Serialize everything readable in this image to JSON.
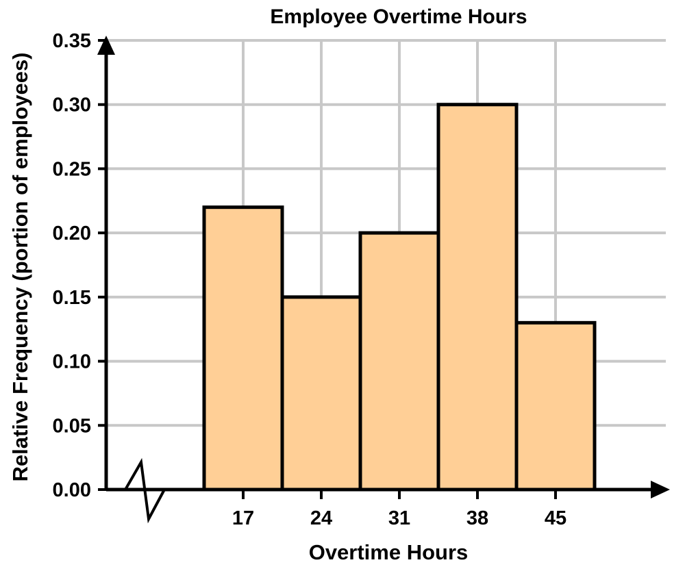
{
  "chart_data": {
    "type": "bar",
    "title": "Employee Overtime Hours",
    "xlabel": "Overtime Hours",
    "ylabel": "Relative Frequency (portion of employees)",
    "categories": [
      "17",
      "24",
      "31",
      "38",
      "45"
    ],
    "values": [
      0.22,
      0.15,
      0.2,
      0.3,
      0.13
    ],
    "ylim": [
      0,
      0.35
    ],
    "yticks": [
      "0.00",
      "0.05",
      "0.10",
      "0.15",
      "0.20",
      "0.25",
      "0.30",
      "0.35"
    ],
    "grid": true,
    "axis_break": true,
    "bar_color": "#ffcf96",
    "edge_color": "#000000"
  }
}
